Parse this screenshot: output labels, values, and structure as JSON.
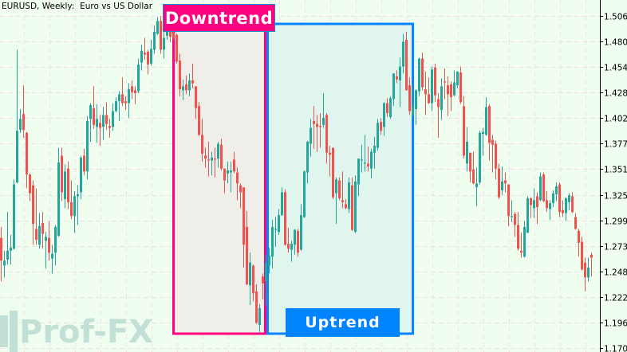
{
  "title": "EURUSD, Weekly:  Euro vs US Dollar",
  "annotations": {
    "downtrend": "Downtrend",
    "uptrend": "Uptrend"
  },
  "logo": "Prof-FX",
  "colors": {
    "background": "#f0fef0",
    "bull": "#26a69a",
    "bear": "#ef5350",
    "downtrend": "#ff0080",
    "uptrend": "#0084ff",
    "downtrend_fill": "#f0eee8",
    "uptrend_fill": "#e0f5ee",
    "grid": "#f0dfe8"
  },
  "chart_data": {
    "type": "candlestick",
    "title": "EURUSD, Weekly:  Euro vs US Dollar",
    "ylim": [
      1.1707,
      1.5061
    ],
    "grid": true,
    "y_ticks": [
      "1.5061",
      "1.4803",
      "1.4545",
      "1.4287",
      "1.4029",
      "1.3771",
      "1.3513",
      "1.3255",
      "1.2997",
      "1.2739",
      "1.2481",
      "1.2223",
      "1.1965",
      "1.1707"
    ],
    "ohlc_fields": [
      "open",
      "high",
      "low",
      "close"
    ],
    "candles": [
      [
        1.282,
        1.293,
        1.238,
        1.259
      ],
      [
        1.254,
        1.269,
        1.242,
        1.259
      ],
      [
        1.26,
        1.308,
        1.255,
        1.269
      ],
      [
        1.269,
        1.285,
        1.255,
        1.272
      ],
      [
        1.271,
        1.341,
        1.27,
        1.336
      ],
      [
        1.338,
        1.472,
        1.337,
        1.39
      ],
      [
        1.391,
        1.412,
        1.388,
        1.402
      ],
      [
        1.407,
        1.436,
        1.383,
        1.391
      ],
      [
        1.388,
        1.389,
        1.332,
        1.346
      ],
      [
        1.346,
        1.347,
        1.319,
        1.327
      ],
      [
        1.335,
        1.34,
        1.275,
        1.296
      ],
      [
        1.291,
        1.332,
        1.275,
        1.28
      ],
      [
        1.275,
        1.307,
        1.271,
        1.294
      ],
      [
        1.297,
        1.308,
        1.271,
        1.286
      ],
      [
        1.279,
        1.288,
        1.251,
        1.283
      ],
      [
        1.282,
        1.299,
        1.259,
        1.267
      ],
      [
        1.261,
        1.275,
        1.246,
        1.266
      ],
      [
        1.267,
        1.295,
        1.254,
        1.293
      ],
      [
        1.284,
        1.373,
        1.283,
        1.358
      ],
      [
        1.365,
        1.373,
        1.319,
        1.328
      ],
      [
        1.321,
        1.356,
        1.312,
        1.349
      ],
      [
        1.352,
        1.359,
        1.311,
        1.318
      ],
      [
        1.318,
        1.34,
        1.301,
        1.304
      ],
      [
        1.304,
        1.329,
        1.287,
        1.324
      ],
      [
        1.324,
        1.335,
        1.295,
        1.326
      ],
      [
        1.328,
        1.365,
        1.321,
        1.363
      ],
      [
        1.365,
        1.372,
        1.345,
        1.349
      ],
      [
        1.349,
        1.405,
        1.341,
        1.4
      ],
      [
        1.402,
        1.418,
        1.379,
        1.416
      ],
      [
        1.413,
        1.435,
        1.392,
        1.396
      ],
      [
        1.394,
        1.417,
        1.378,
        1.402
      ],
      [
        1.398,
        1.406,
        1.375,
        1.393
      ],
      [
        1.394,
        1.414,
        1.381,
        1.406
      ],
      [
        1.406,
        1.419,
        1.391,
        1.397
      ],
      [
        1.395,
        1.402,
        1.383,
        1.393
      ],
      [
        1.394,
        1.418,
        1.39,
        1.41
      ],
      [
        1.41,
        1.424,
        1.409,
        1.42
      ],
      [
        1.42,
        1.43,
        1.4,
        1.427
      ],
      [
        1.427,
        1.444,
        1.415,
        1.418
      ],
      [
        1.42,
        1.425,
        1.411,
        1.418
      ],
      [
        1.418,
        1.438,
        1.403,
        1.432
      ],
      [
        1.435,
        1.441,
        1.422,
        1.429
      ],
      [
        1.431,
        1.435,
        1.417,
        1.428
      ],
      [
        1.43,
        1.463,
        1.428,
        1.457
      ],
      [
        1.459,
        1.477,
        1.451,
        1.471
      ],
      [
        1.469,
        1.484,
        1.462,
        1.467
      ],
      [
        1.47,
        1.472,
        1.447,
        1.457
      ],
      [
        1.458,
        1.482,
        1.456,
        1.473
      ],
      [
        1.472,
        1.496,
        1.468,
        1.49
      ],
      [
        1.488,
        1.505,
        1.487,
        1.501
      ],
      [
        1.501,
        1.506,
        1.468,
        1.472
      ],
      [
        1.472,
        1.491,
        1.463,
        1.484
      ],
      [
        1.486,
        1.498,
        1.482,
        1.494
      ],
      [
        1.49,
        1.496,
        1.48,
        1.485
      ],
      [
        1.489,
        1.494,
        1.482,
        1.484
      ],
      [
        1.487,
        1.488,
        1.458,
        1.46
      ],
      [
        1.461,
        1.468,
        1.425,
        1.432
      ],
      [
        1.431,
        1.442,
        1.421,
        1.435
      ],
      [
        1.437,
        1.446,
        1.427,
        1.431
      ],
      [
        1.431,
        1.448,
        1.425,
        1.441
      ],
      [
        1.441,
        1.458,
        1.433,
        1.438
      ],
      [
        1.435,
        1.435,
        1.402,
        1.413
      ],
      [
        1.415,
        1.419,
        1.385,
        1.386
      ],
      [
        1.386,
        1.402,
        1.359,
        1.367
      ],
      [
        1.365,
        1.373,
        1.353,
        1.362
      ],
      [
        1.361,
        1.379,
        1.344,
        1.36
      ],
      [
        1.36,
        1.369,
        1.345,
        1.363
      ],
      [
        1.362,
        1.373,
        1.343,
        1.361
      ],
      [
        1.362,
        1.379,
        1.353,
        1.377
      ],
      [
        1.376,
        1.382,
        1.35,
        1.352
      ],
      [
        1.352,
        1.352,
        1.327,
        1.34
      ],
      [
        1.347,
        1.359,
        1.337,
        1.35
      ],
      [
        1.348,
        1.359,
        1.328,
        1.35
      ],
      [
        1.361,
        1.369,
        1.347,
        1.349
      ],
      [
        1.348,
        1.353,
        1.32,
        1.337
      ],
      [
        1.335,
        1.337,
        1.312,
        1.328
      ],
      [
        1.333,
        1.333,
        1.252,
        1.275
      ],
      [
        1.293,
        1.309,
        1.234,
        1.235
      ],
      [
        1.234,
        1.267,
        1.214,
        1.257
      ],
      [
        1.254,
        1.255,
        1.218,
        1.226
      ],
      [
        1.228,
        1.235,
        1.195,
        1.196
      ],
      [
        1.194,
        1.215,
        1.187,
        1.211
      ],
      [
        1.243,
        1.246,
        1.22,
        1.236
      ],
      [
        1.238,
        1.265,
        1.214,
        1.257
      ],
      [
        1.254,
        1.272,
        1.246,
        1.264
      ],
      [
        1.263,
        1.3,
        1.251,
        1.293
      ],
      [
        1.29,
        1.303,
        1.273,
        1.291
      ],
      [
        1.288,
        1.311,
        1.285,
        1.305
      ],
      [
        1.305,
        1.333,
        1.304,
        1.328
      ],
      [
        1.328,
        1.331,
        1.274,
        1.275
      ],
      [
        1.276,
        1.292,
        1.267,
        1.271
      ],
      [
        1.27,
        1.279,
        1.258,
        1.276
      ],
      [
        1.275,
        1.291,
        1.265,
        1.29
      ],
      [
        1.289,
        1.291,
        1.263,
        1.267
      ],
      [
        1.27,
        1.316,
        1.269,
        1.305
      ],
      [
        1.303,
        1.35,
        1.302,
        1.349
      ],
      [
        1.348,
        1.38,
        1.337,
        1.379
      ],
      [
        1.377,
        1.402,
        1.364,
        1.393
      ],
      [
        1.4,
        1.415,
        1.372,
        1.397
      ],
      [
        1.397,
        1.406,
        1.369,
        1.394
      ],
      [
        1.395,
        1.408,
        1.373,
        1.394
      ],
      [
        1.396,
        1.428,
        1.393,
        1.403
      ],
      [
        1.406,
        1.408,
        1.357,
        1.368
      ],
      [
        1.368,
        1.375,
        1.344,
        1.366
      ],
      [
        1.373,
        1.373,
        1.321,
        1.323
      ],
      [
        1.327,
        1.343,
        1.296,
        1.341
      ],
      [
        1.34,
        1.343,
        1.32,
        1.322
      ],
      [
        1.32,
        1.349,
        1.312,
        1.318
      ],
      [
        1.316,
        1.321,
        1.311,
        1.312
      ],
      [
        1.311,
        1.343,
        1.307,
        1.338
      ],
      [
        1.335,
        1.343,
        1.289,
        1.29
      ],
      [
        1.288,
        1.345,
        1.287,
        1.339
      ],
      [
        1.336,
        1.362,
        1.324,
        1.362
      ],
      [
        1.36,
        1.376,
        1.348,
        1.361
      ],
      [
        1.357,
        1.386,
        1.349,
        1.358
      ],
      [
        1.357,
        1.374,
        1.349,
        1.354
      ],
      [
        1.352,
        1.372,
        1.342,
        1.369
      ],
      [
        1.368,
        1.384,
        1.352,
        1.375
      ],
      [
        1.373,
        1.402,
        1.37,
        1.398
      ],
      [
        1.399,
        1.403,
        1.386,
        1.39
      ],
      [
        1.394,
        1.419,
        1.385,
        1.418
      ],
      [
        1.418,
        1.423,
        1.404,
        1.408
      ],
      [
        1.404,
        1.425,
        1.402,
        1.423
      ],
      [
        1.422,
        1.448,
        1.415,
        1.448
      ],
      [
        1.445,
        1.451,
        1.438,
        1.442
      ],
      [
        1.441,
        1.464,
        1.414,
        1.455
      ],
      [
        1.455,
        1.488,
        1.448,
        1.48
      ],
      [
        1.482,
        1.49,
        1.431,
        1.431
      ],
      [
        1.436,
        1.444,
        1.406,
        1.41
      ],
      [
        1.406,
        1.435,
        1.404,
        1.415
      ],
      [
        1.412,
        1.432,
        1.396,
        1.431
      ],
      [
        1.43,
        1.464,
        1.425,
        1.463
      ],
      [
        1.463,
        1.469,
        1.431,
        1.434
      ],
      [
        1.432,
        1.45,
        1.406,
        1.427
      ],
      [
        1.427,
        1.444,
        1.417,
        1.418
      ],
      [
        1.418,
        1.455,
        1.41,
        1.452
      ],
      [
        1.454,
        1.458,
        1.419,
        1.426
      ],
      [
        1.422,
        1.428,
        1.383,
        1.414
      ],
      [
        1.411,
        1.443,
        1.401,
        1.435
      ],
      [
        1.44,
        1.453,
        1.422,
        1.439
      ],
      [
        1.436,
        1.445,
        1.405,
        1.427
      ],
      [
        1.437,
        1.44,
        1.41,
        1.424
      ],
      [
        1.426,
        1.451,
        1.425,
        1.439
      ],
      [
        1.436,
        1.45,
        1.433,
        1.45
      ],
      [
        1.449,
        1.455,
        1.417,
        1.419
      ],
      [
        1.415,
        1.425,
        1.362,
        1.365
      ],
      [
        1.357,
        1.394,
        1.349,
        1.379
      ],
      [
        1.368,
        1.368,
        1.338,
        1.349
      ],
      [
        1.351,
        1.369,
        1.336,
        1.337
      ],
      [
        1.333,
        1.353,
        1.314,
        1.337
      ],
      [
        1.338,
        1.39,
        1.336,
        1.388
      ],
      [
        1.387,
        1.393,
        1.365,
        1.389
      ],
      [
        1.386,
        1.424,
        1.385,
        1.414
      ],
      [
        1.415,
        1.417,
        1.36,
        1.378
      ],
      [
        1.381,
        1.386,
        1.348,
        1.376
      ],
      [
        1.377,
        1.38,
        1.341,
        1.352
      ],
      [
        1.352,
        1.357,
        1.321,
        1.323
      ],
      [
        1.33,
        1.354,
        1.325,
        1.339
      ],
      [
        1.34,
        1.348,
        1.328,
        1.337
      ],
      [
        1.336,
        1.336,
        1.294,
        1.304
      ],
      [
        1.303,
        1.32,
        1.298,
        1.304
      ],
      [
        1.306,
        1.308,
        1.283,
        1.295
      ],
      [
        1.295,
        1.308,
        1.269,
        1.271
      ],
      [
        1.269,
        1.287,
        1.262,
        1.267
      ],
      [
        1.263,
        1.299,
        1.262,
        1.293
      ],
      [
        1.287,
        1.324,
        1.287,
        1.322
      ],
      [
        1.322,
        1.323,
        1.302,
        1.315
      ],
      [
        1.312,
        1.332,
        1.302,
        1.32
      ],
      [
        1.324,
        1.328,
        1.296,
        1.313
      ],
      [
        1.32,
        1.348,
        1.319,
        1.344
      ],
      [
        1.346,
        1.348,
        1.318,
        1.319
      ],
      [
        1.32,
        1.329,
        1.308,
        1.312
      ],
      [
        1.311,
        1.32,
        1.3,
        1.317
      ],
      [
        1.317,
        1.33,
        1.313,
        1.327
      ],
      [
        1.326,
        1.338,
        1.319,
        1.334
      ],
      [
        1.336,
        1.338,
        1.303,
        1.308
      ],
      [
        1.31,
        1.32,
        1.303,
        1.307
      ],
      [
        1.307,
        1.323,
        1.299,
        1.322
      ],
      [
        1.318,
        1.327,
        1.31,
        1.325
      ],
      [
        1.324,
        1.328,
        1.307,
        1.308
      ],
      [
        1.303,
        1.307,
        1.29,
        1.291
      ],
      [
        1.289,
        1.291,
        1.263,
        1.277
      ],
      [
        1.278,
        1.283,
        1.249,
        1.25
      ],
      [
        1.257,
        1.262,
        1.228,
        1.242
      ],
      [
        1.242,
        1.262,
        1.238,
        1.252
      ],
      [
        1.265,
        1.267,
        1.243,
        1.262
      ]
    ]
  }
}
